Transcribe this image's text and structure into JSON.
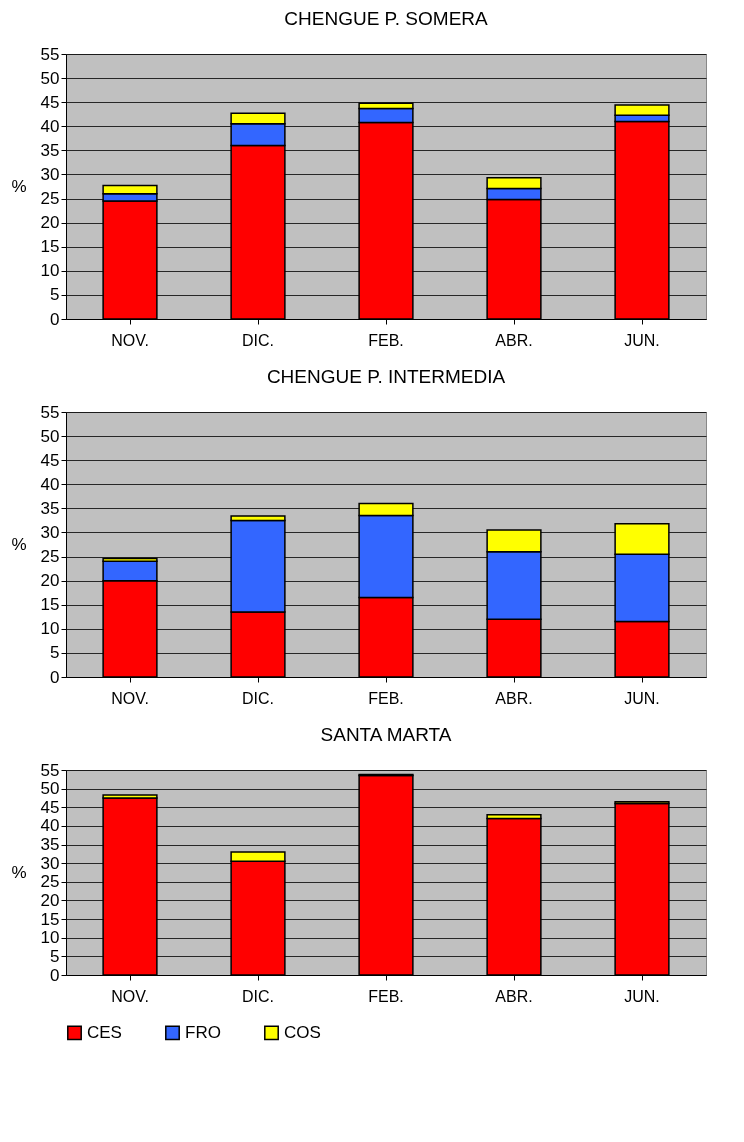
{
  "chart_data": [
    {
      "type": "bar",
      "stacked": true,
      "title": "CHENGUE  P. SOMERA",
      "ylabel": "%",
      "categories": [
        "NOV.",
        "DIC.",
        "FEB.",
        "ABR.",
        "JUN."
      ],
      "ylim": [
        0,
        55
      ],
      "yticks": [
        0,
        5,
        10,
        15,
        20,
        25,
        30,
        35,
        40,
        45,
        50,
        55
      ],
      "grid": "y",
      "series": [
        {
          "color": "#ff0000",
          "values": [
            24.5,
            36,
            40.8,
            24.8,
            41
          ]
        },
        {
          "color": "#3366ff",
          "values": [
            1.5,
            4.5,
            2.9,
            2.3,
            1.3
          ]
        },
        {
          "color": "#ffff00",
          "values": [
            1.7,
            2.2,
            1.1,
            2.2,
            2.1
          ]
        }
      ]
    },
    {
      "type": "bar",
      "stacked": true,
      "title": "CHENGUE  P. INTERMEDIA",
      "ylabel": "%",
      "categories": [
        "NOV.",
        "DIC.",
        "FEB.",
        "ABR.",
        "JUN."
      ],
      "ylim": [
        0,
        55
      ],
      "yticks": [
        0,
        5,
        10,
        15,
        20,
        25,
        30,
        35,
        40,
        45,
        50,
        55
      ],
      "grid": "y",
      "series": [
        {
          "color": "#ff0000",
          "values": [
            20,
            13.5,
            16.5,
            12,
            11.5
          ]
        },
        {
          "color": "#3366ff",
          "values": [
            4,
            19,
            17,
            14,
            14
          ]
        },
        {
          "color": "#ffff00",
          "values": [
            0.6,
            0.9,
            2.5,
            4.5,
            6.3
          ]
        }
      ]
    },
    {
      "type": "bar",
      "stacked": true,
      "title": "SANTA MARTA",
      "ylabel": "%",
      "categories": [
        "NOV.",
        "DIC.",
        "FEB.",
        "ABR.",
        "JUN."
      ],
      "ylim": [
        0,
        55
      ],
      "yticks": [
        0,
        5,
        10,
        15,
        20,
        25,
        30,
        35,
        40,
        45,
        50,
        55
      ],
      "grid": "y",
      "legend": "bottom",
      "series": [
        {
          "name": "CES",
          "color": "#ff0000",
          "values": [
            47.5,
            30.5,
            53.5,
            42,
            46
          ]
        },
        {
          "name": "FRO",
          "color": "#3366ff",
          "values": [
            null,
            null,
            null,
            null,
            null
          ]
        },
        {
          "name": "COS",
          "color": "#ffff00",
          "values": [
            0.8,
            2.5,
            0.3,
            1,
            0.5
          ]
        }
      ]
    }
  ]
}
